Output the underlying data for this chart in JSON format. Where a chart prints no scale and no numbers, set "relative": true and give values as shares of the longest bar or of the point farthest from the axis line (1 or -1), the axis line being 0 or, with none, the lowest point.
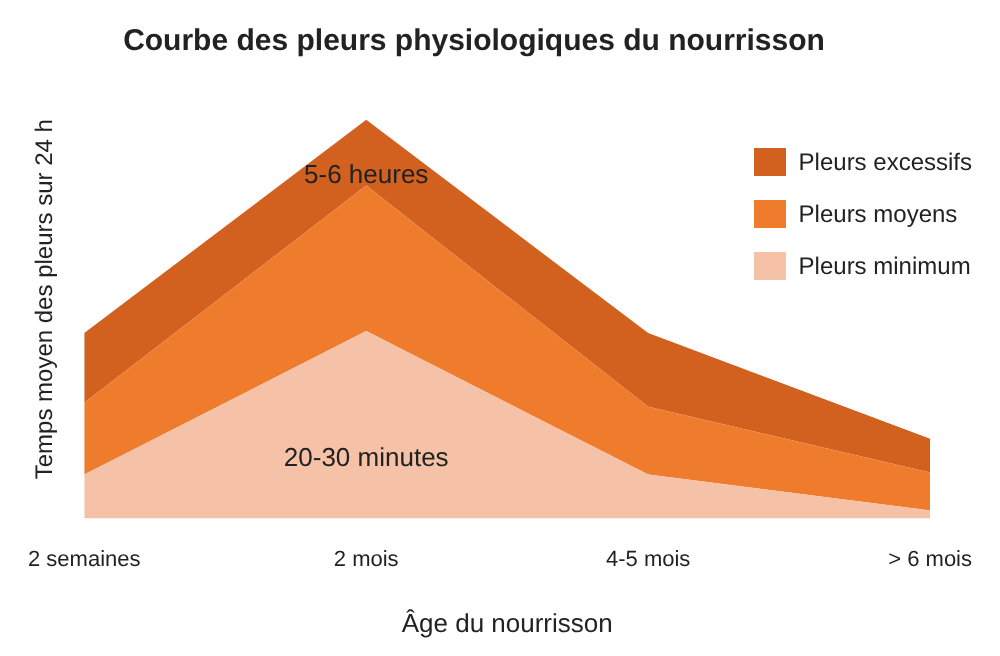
{
  "chart_data": {
    "type": "area",
    "title": "Courbe des pleurs physiologiques du nourrisson",
    "xlabel": "Âge du nourrisson",
    "ylabel": "Temps moyen des pleurs sur 24 h",
    "categories": [
      "2 semaines",
      "2 mois",
      "4-5 mois",
      "> 6 mois"
    ],
    "relative": true,
    "stacked": true,
    "legend": "top right",
    "grid": false,
    "series": [
      {
        "name": "Pleurs minimum",
        "color": "#f5c2a8",
        "values": [
          0.11,
          0.47,
          0.11,
          0.02
        ]
      },
      {
        "name": "Pleurs moyens",
        "color": "#ef7b2c",
        "values": [
          0.18,
          0.365,
          0.17,
          0.095
        ]
      },
      {
        "name": "Pleurs excessifs",
        "color": "#d2601f",
        "values": [
          0.175,
          0.165,
          0.185,
          0.085
        ]
      }
    ],
    "annotations": [
      {
        "text": "5-6 heures",
        "x": "2 mois",
        "y": 0.86
      },
      "20-30 minutes"
    ]
  }
}
